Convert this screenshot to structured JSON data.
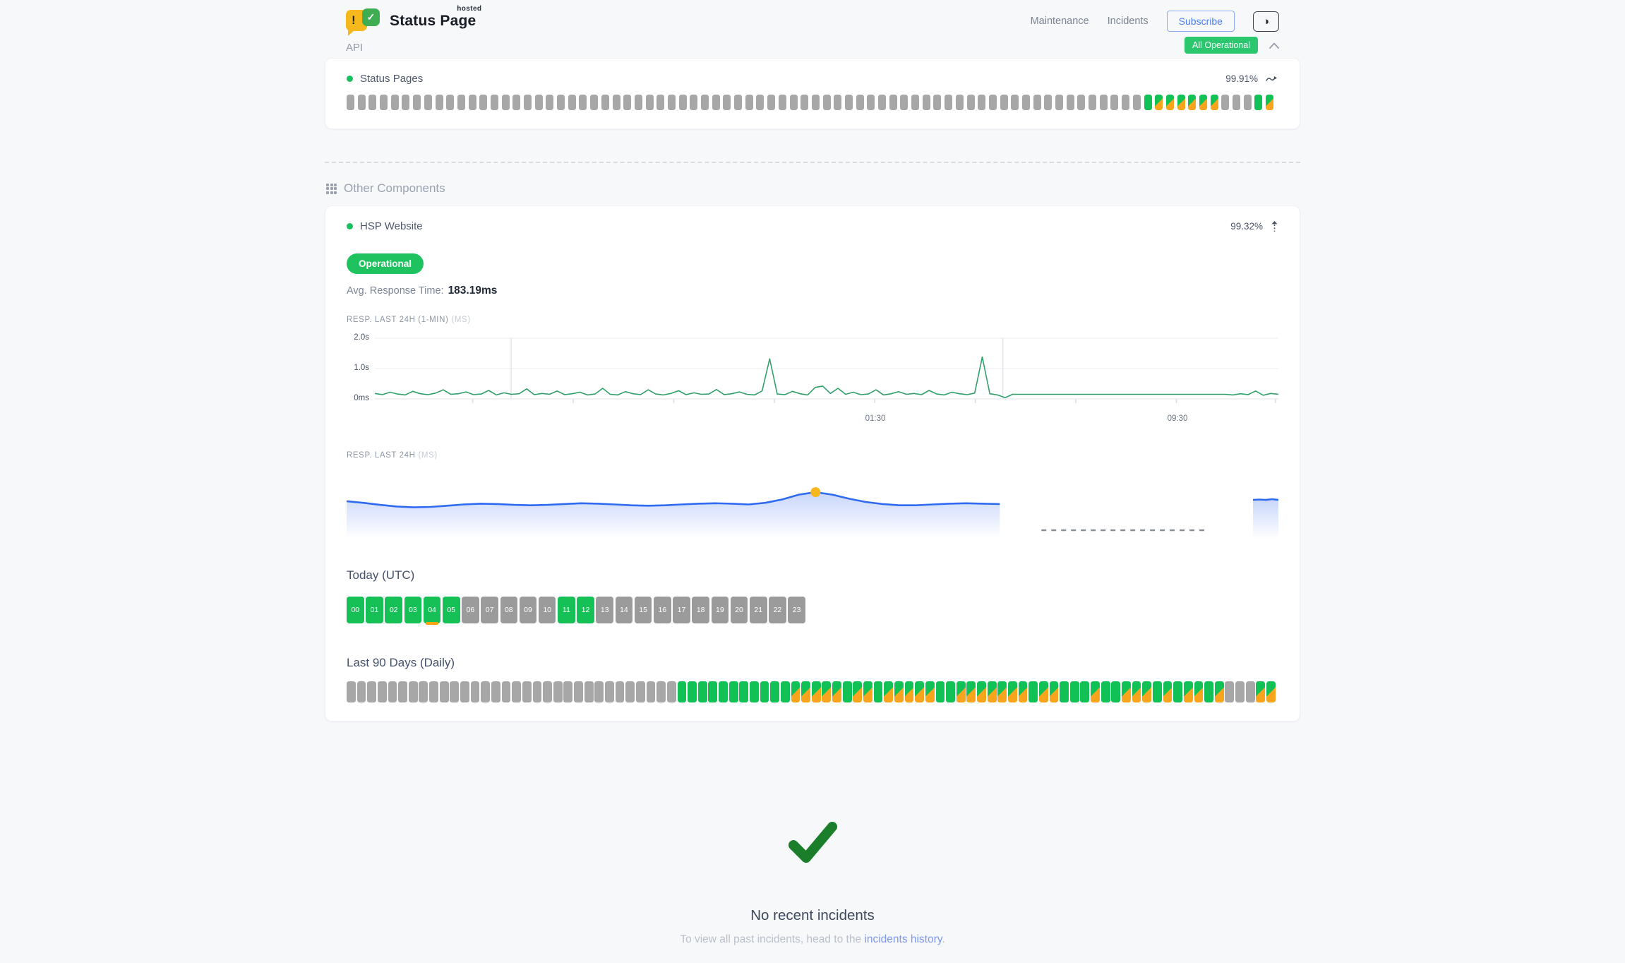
{
  "header": {
    "logo": {
      "title": "Status Page",
      "tag": "hosted",
      "bubble_glyph": "!",
      "check_glyph": "✓"
    },
    "nav": {
      "maintenance": "Maintenance",
      "incidents": "Incidents",
      "subscribe": "Subscribe",
      "theme_toggle_glyph": "◑"
    },
    "overall_status": {
      "label": "All Operational"
    }
  },
  "api_section": {
    "title": "API",
    "component": {
      "name": "Status Pages",
      "uptime": "99.91%",
      "timeline": "xxxxxxxxxxxxxxxxxxxxxxxxxxxxxxxxxxxxxxxxxxxxxxxxxxxxxxxxxxxxxxxxxxxxxxxxghhhhhhxxxgh"
    }
  },
  "other_section": {
    "title": "Other Components",
    "component": {
      "name": "HSP Website",
      "uptime": "99.32%",
      "status_label": "Operational",
      "avg_label": "Avg. Response Time:",
      "avg_value": "183.19ms",
      "chart1_label": "RESP. LAST 24H (1-MIN)",
      "chart1_unit": "(MS)",
      "chart2_label": "RESP. LAST 24H",
      "chart2_unit": "(MS)",
      "today_label": "Today (UTC)",
      "hours": [
        {
          "label": "00",
          "state": "up"
        },
        {
          "label": "01",
          "state": "up"
        },
        {
          "label": "02",
          "state": "up"
        },
        {
          "label": "03",
          "state": "up"
        },
        {
          "label": "04",
          "state": "up",
          "marker": true
        },
        {
          "label": "05",
          "state": "up"
        },
        {
          "label": "06",
          "state": "idle"
        },
        {
          "label": "07",
          "state": "idle"
        },
        {
          "label": "08",
          "state": "idle"
        },
        {
          "label": "09",
          "state": "idle"
        },
        {
          "label": "10",
          "state": "idle"
        },
        {
          "label": "11",
          "state": "up"
        },
        {
          "label": "12",
          "state": "up"
        },
        {
          "label": "13",
          "state": "idle"
        },
        {
          "label": "14",
          "state": "idle"
        },
        {
          "label": "15",
          "state": "idle"
        },
        {
          "label": "16",
          "state": "idle"
        },
        {
          "label": "17",
          "state": "idle"
        },
        {
          "label": "18",
          "state": "idle"
        },
        {
          "label": "19",
          "state": "idle"
        },
        {
          "label": "20",
          "state": "idle"
        },
        {
          "label": "21",
          "state": "idle"
        },
        {
          "label": "22",
          "state": "idle"
        },
        {
          "label": "23",
          "state": "idle"
        }
      ],
      "last90_label": "Last 90 Days (Daily)",
      "daily": "xxxxxxxxxxxxxxxxxxxxxxxxxxxxxxxxggggggggggghhhhhghhghhhhhgghhhhhhhghhggghgghhhghghhghxxxhh"
    }
  },
  "incidents": {
    "title": "No recent incidents",
    "subtext_prefix": "To view all past incidents, head to the ",
    "link_text": "incidents history",
    "subtext_suffix": "."
  },
  "colors": {
    "green_badge": "#2bc76e",
    "green_bar": "#12c156",
    "orange": "#f8a41d",
    "gray_bar": "#a7a7a7",
    "chart_line_green": "#2f9e68",
    "chart_line_blue": "#2e6bf0",
    "marker_yellow": "#f6b71d",
    "check_green": "#1b7e2a"
  },
  "chart_data": [
    {
      "id": "resp_last_24h_1min",
      "type": "line",
      "title": "RESP. LAST 24H (1-MIN) (MS)",
      "ylabel_ticks": [
        "2.0s",
        "1.0s",
        "0ms"
      ],
      "xticks": [
        "01:30",
        "09:30"
      ],
      "ylim_ms": [
        0,
        2000
      ],
      "points_ms": [
        180,
        140,
        220,
        160,
        130,
        250,
        170,
        140,
        190,
        300,
        150,
        170,
        230,
        140,
        160,
        280,
        130,
        200,
        150,
        170,
        330,
        140,
        180,
        150,
        260,
        140,
        170,
        220,
        130,
        160,
        350,
        150,
        130,
        240,
        170,
        140,
        300,
        160,
        130,
        180,
        270,
        140,
        200,
        150,
        160,
        310,
        140,
        170,
        230,
        150,
        130,
        260,
        1320,
        160,
        140,
        250,
        170,
        130,
        380,
        420,
        180,
        350,
        150,
        220,
        140,
        160,
        300,
        130,
        170,
        240,
        150,
        180,
        140,
        280,
        160,
        130,
        220,
        170,
        140,
        190,
        1380,
        170,
        130,
        40,
        150,
        150,
        150,
        150,
        150,
        150,
        150,
        150,
        150,
        150,
        150,
        150,
        150,
        150,
        150,
        150,
        150,
        150,
        150,
        150,
        150,
        150,
        150,
        150,
        150,
        150,
        150,
        150,
        150,
        130,
        170,
        140,
        260,
        120,
        180,
        150
      ]
    },
    {
      "id": "resp_last_24h_avg",
      "type": "area",
      "title": "RESP. LAST 24H (MS)",
      "segments": [
        {
          "points_ms": [
            196,
            192,
            187,
            183,
            181,
            182,
            185,
            188,
            190,
            189,
            187,
            186,
            187,
            189,
            191,
            190,
            188,
            186,
            185,
            186,
            188,
            190,
            191,
            190,
            188,
            192,
            200,
            212,
            218,
            212,
            202,
            194,
            189,
            186,
            186,
            188,
            190,
            191,
            190,
            189
          ]
        },
        {
          "points_ms": [
            199,
            200,
            199,
            201,
            199
          ]
        }
      ],
      "marker": {
        "segment": 0,
        "index": 28,
        "value_ms": 218
      },
      "gap_dashed_line": true
    }
  ]
}
